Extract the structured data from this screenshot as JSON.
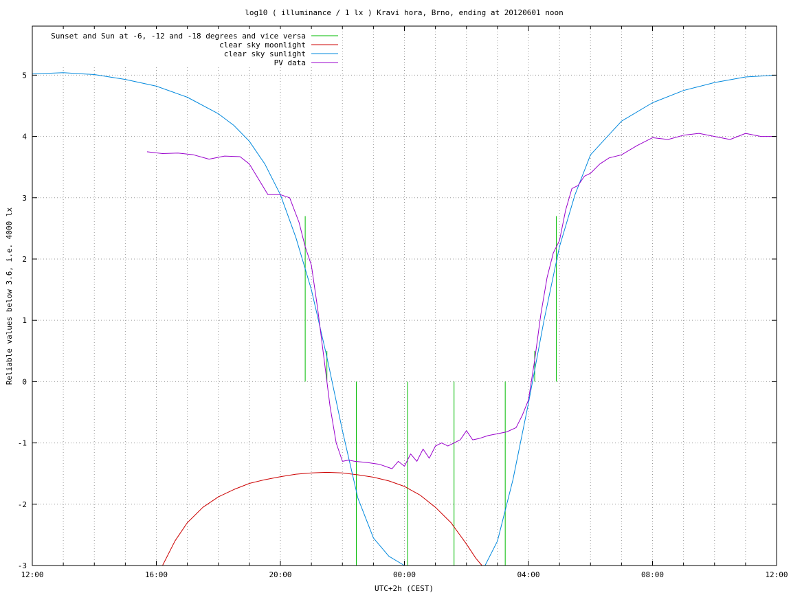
{
  "chart_data": {
    "type": "line",
    "title": "log10 ( illuminance / 1 lx ) Kravi hora, Brno, ending at 20120601 noon",
    "xlabel": "UTC+2h (CEST)",
    "ylabel": "Reliable values below 3.6, i.e. 4000 lx",
    "xlim": [
      0,
      24
    ],
    "ylim": [
      -3,
      5.8
    ],
    "x_ticks": [
      {
        "x": 0,
        "label": "12:00"
      },
      {
        "x": 4,
        "label": "16:00"
      },
      {
        "x": 8,
        "label": "20:00"
      },
      {
        "x": 12,
        "label": "00:00"
      },
      {
        "x": 16,
        "label": "04:00"
      },
      {
        "x": 20,
        "label": "08:00"
      },
      {
        "x": 24,
        "label": "12:00"
      }
    ],
    "y_ticks": [
      -3,
      -2,
      -1,
      0,
      1,
      2,
      3,
      4,
      5
    ],
    "grid": true,
    "legend_position": "top-left",
    "series": [
      {
        "name": "Sunset and Sun at -6, -12 and -18 degrees and vice versa",
        "color": "#00bb00",
        "kind": "vertical-lines",
        "lines": [
          {
            "x": 8.8,
            "y0": 0,
            "y1": 2.7
          },
          {
            "x": 9.5,
            "y0": 0,
            "y1": 0.5
          },
          {
            "x": 10.45,
            "y0": -3,
            "y1": 0
          },
          {
            "x": 12.1,
            "y0": -3,
            "y1": 0
          },
          {
            "x": 13.6,
            "y0": -3,
            "y1": 0
          },
          {
            "x": 15.25,
            "y0": -3,
            "y1": 0
          },
          {
            "x": 16.2,
            "y0": 0,
            "y1": 0.5
          },
          {
            "x": 16.9,
            "y0": 0,
            "y1": 2.7
          }
        ]
      },
      {
        "name": "clear sky moonlight",
        "color": "#cc0000",
        "x": [
          4.2,
          4.6,
          5.0,
          5.5,
          6.0,
          6.5,
          7.0,
          7.5,
          8.0,
          8.5,
          9.0,
          9.5,
          10.0,
          10.5,
          11.0,
          11.5,
          12.0,
          12.5,
          13.0,
          13.5,
          14.0,
          14.3,
          14.5
        ],
        "values": [
          -3.0,
          -2.6,
          -2.3,
          -2.05,
          -1.88,
          -1.76,
          -1.66,
          -1.6,
          -1.55,
          -1.51,
          -1.49,
          -1.48,
          -1.49,
          -1.52,
          -1.56,
          -1.62,
          -1.71,
          -1.85,
          -2.05,
          -2.3,
          -2.65,
          -2.88,
          -3.0
        ]
      },
      {
        "name": "clear sky sunlight",
        "color": "#0088dd",
        "x": [
          0,
          1,
          2,
          3,
          4,
          5,
          6,
          6.5,
          7,
          7.5,
          8,
          8.5,
          9,
          9.5,
          10,
          10.5,
          11,
          11.5,
          12,
          12.2,
          14.6,
          15,
          15.5,
          16,
          16.5,
          17,
          17.5,
          18,
          19,
          20,
          21,
          22,
          23,
          24
        ],
        "values": [
          5.02,
          5.04,
          5.01,
          4.93,
          4.82,
          4.64,
          4.37,
          4.18,
          3.92,
          3.55,
          3.05,
          2.35,
          1.5,
          0.4,
          -0.8,
          -1.9,
          -2.55,
          -2.85,
          -3.0,
          -3.1,
          -3.1,
          -2.6,
          -1.6,
          -0.35,
          1.0,
          2.2,
          3.05,
          3.7,
          4.25,
          4.55,
          4.75,
          4.88,
          4.97,
          5.0
        ]
      },
      {
        "name": "PV data",
        "color": "#9900cc",
        "x": [
          3.7,
          4.2,
          4.7,
          5.2,
          5.7,
          6.2,
          6.7,
          7.0,
          7.3,
          7.6,
          8.0,
          8.3,
          8.6,
          8.8,
          9.0,
          9.2,
          9.4,
          9.6,
          9.8,
          10.0,
          10.2,
          10.4,
          10.8,
          11.2,
          11.6,
          11.8,
          12.0,
          12.2,
          12.4,
          12.6,
          12.8,
          13.0,
          13.2,
          13.4,
          13.6,
          13.8,
          14.0,
          14.2,
          14.4,
          14.7,
          15.0,
          15.3,
          15.6,
          15.8,
          16.0,
          16.2,
          16.4,
          16.6,
          16.8,
          17.0,
          17.2,
          17.4,
          17.6,
          17.8,
          18.0,
          18.3,
          18.6,
          19.0,
          19.5,
          20.0,
          20.5,
          21.0,
          21.5,
          22.0,
          22.5,
          23.0,
          23.5,
          24.0
        ],
        "values": [
          3.75,
          3.72,
          3.73,
          3.7,
          3.63,
          3.68,
          3.67,
          3.55,
          3.3,
          3.05,
          3.05,
          3.0,
          2.6,
          2.2,
          1.9,
          1.2,
          0.4,
          -0.4,
          -1.0,
          -1.3,
          -1.28,
          -1.3,
          -1.32,
          -1.35,
          -1.42,
          -1.3,
          -1.38,
          -1.18,
          -1.3,
          -1.1,
          -1.25,
          -1.05,
          -1.0,
          -1.05,
          -1.0,
          -0.95,
          -0.8,
          -0.95,
          -0.93,
          -0.88,
          -0.85,
          -0.82,
          -0.75,
          -0.55,
          -0.3,
          0.35,
          1.1,
          1.7,
          2.1,
          2.3,
          2.8,
          3.15,
          3.2,
          3.35,
          3.4,
          3.55,
          3.65,
          3.7,
          3.85,
          3.98,
          3.95,
          4.02,
          4.05,
          4.0,
          3.95,
          4.05,
          4.0,
          4.0
        ]
      }
    ]
  }
}
